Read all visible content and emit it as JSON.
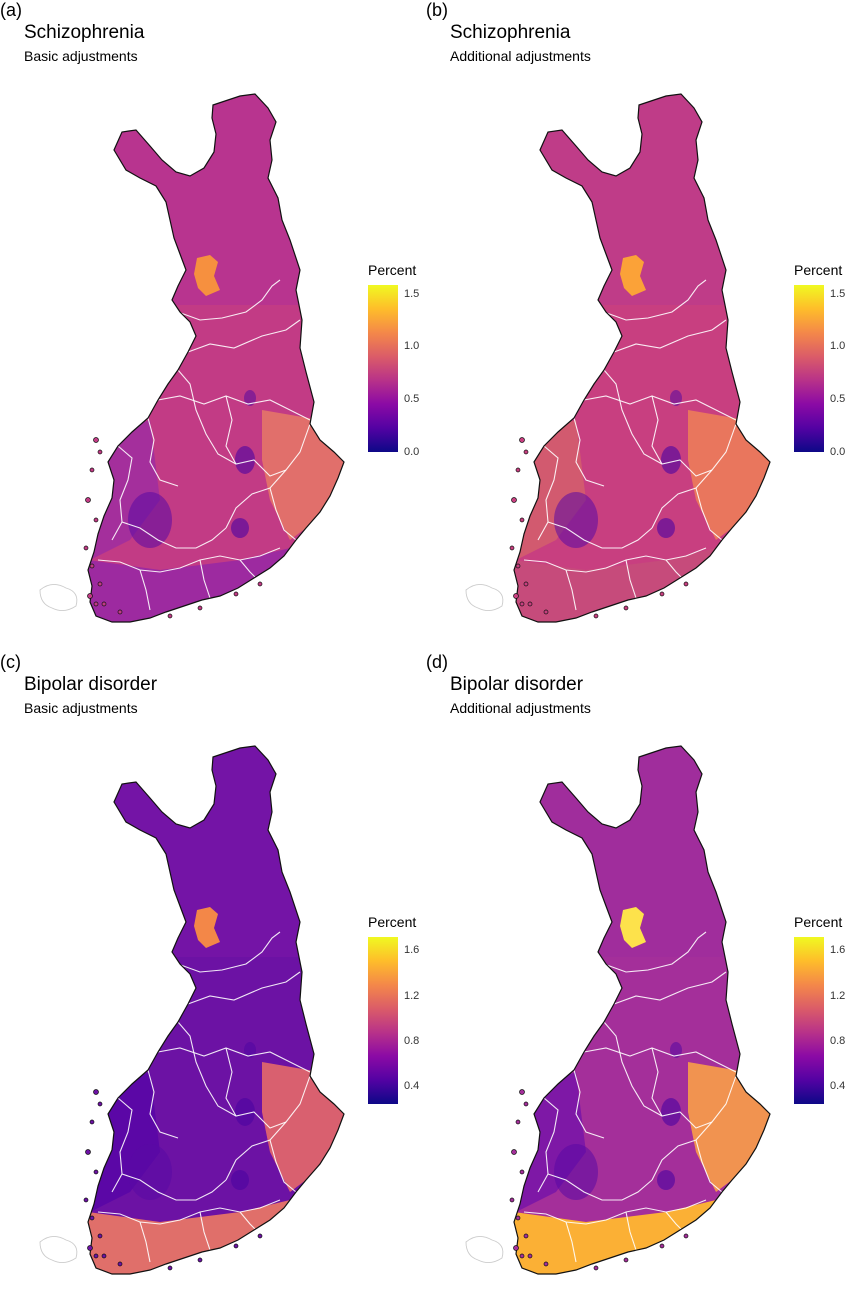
{
  "panels": [
    {
      "tag": "(a)",
      "title": "Schizophrenia",
      "subtitle": "Basic adjustments",
      "legend": {
        "title": "Percent",
        "ticks": [
          "1.5",
          "1.0",
          "0.5",
          "0.0"
        ]
      },
      "palette": {
        "base": "#c23b85",
        "north": "#b8348f",
        "east": "#e16f6b",
        "west": "#a42f9c",
        "south": "#9d2aa0",
        "hotspot": "#f6903f"
      }
    },
    {
      "tag": "(b)",
      "title": "Schizophrenia",
      "subtitle": "Additional adjustments",
      "legend": {
        "title": "Percent",
        "ticks": [
          "1.5",
          "1.0",
          "0.5",
          "0.0"
        ]
      },
      "palette": {
        "base": "#c83f80",
        "north": "#bf3c88",
        "east": "#e9765d",
        "west": "#d25a6f",
        "south": "#c64b7b",
        "hotspot": "#fba238"
      }
    },
    {
      "tag": "(c)",
      "title": "Bipolar disorder",
      "subtitle": "Basic adjustments",
      "legend": {
        "title": "Percent",
        "ticks": [
          "1.6",
          "1.2",
          "0.8",
          "0.4"
        ]
      },
      "palette": {
        "base": "#6c12a4",
        "north": "#7414a6",
        "east": "#d9606f",
        "west": "#5b07a6",
        "south": "#e06f6a",
        "hotspot": "#f38748"
      }
    },
    {
      "tag": "(d)",
      "title": "Bipolar disorder",
      "subtitle": "Additional adjustments",
      "legend": {
        "title": "Percent",
        "ticks": [
          "1.6",
          "1.2",
          "0.8",
          "0.4"
        ]
      },
      "palette": {
        "base": "#a42f9a",
        "north": "#a02d9c",
        "east": "#f19350",
        "west": "#7e18a6",
        "south": "#fbb035",
        "hotspot": "#fde24b"
      }
    }
  ],
  "colorscale": [
    "#0d0887",
    "#5302a3",
    "#8b0aa5",
    "#b83289",
    "#db5c68",
    "#f48849",
    "#febd2a",
    "#f0f921"
  ]
}
